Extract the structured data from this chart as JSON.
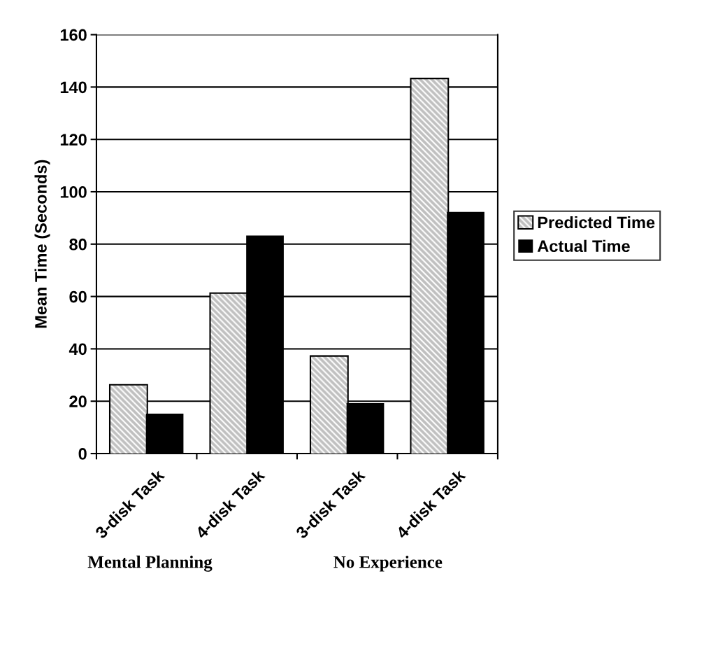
{
  "chart_data": {
    "type": "bar",
    "ylabel": "Mean Time (Seconds)",
    "categories": [
      "3-disk Task",
      "4-disk Task",
      "3-disk Task",
      "4-disk Task"
    ],
    "series": [
      {
        "name": "Predicted Time",
        "color": "#c0c0c0",
        "values": [
          26,
          61,
          37,
          143
        ]
      },
      {
        "name": "Actual Time",
        "color": "#000000",
        "values": [
          15,
          83,
          19,
          92
        ]
      }
    ],
    "ylim": [
      0,
      160
    ],
    "yticks": [
      0,
      20,
      40,
      60,
      80,
      100,
      120,
      140,
      160
    ],
    "grid": "y",
    "legend": "right",
    "annotations": [
      "Mental Planning",
      "No Experience"
    ]
  }
}
